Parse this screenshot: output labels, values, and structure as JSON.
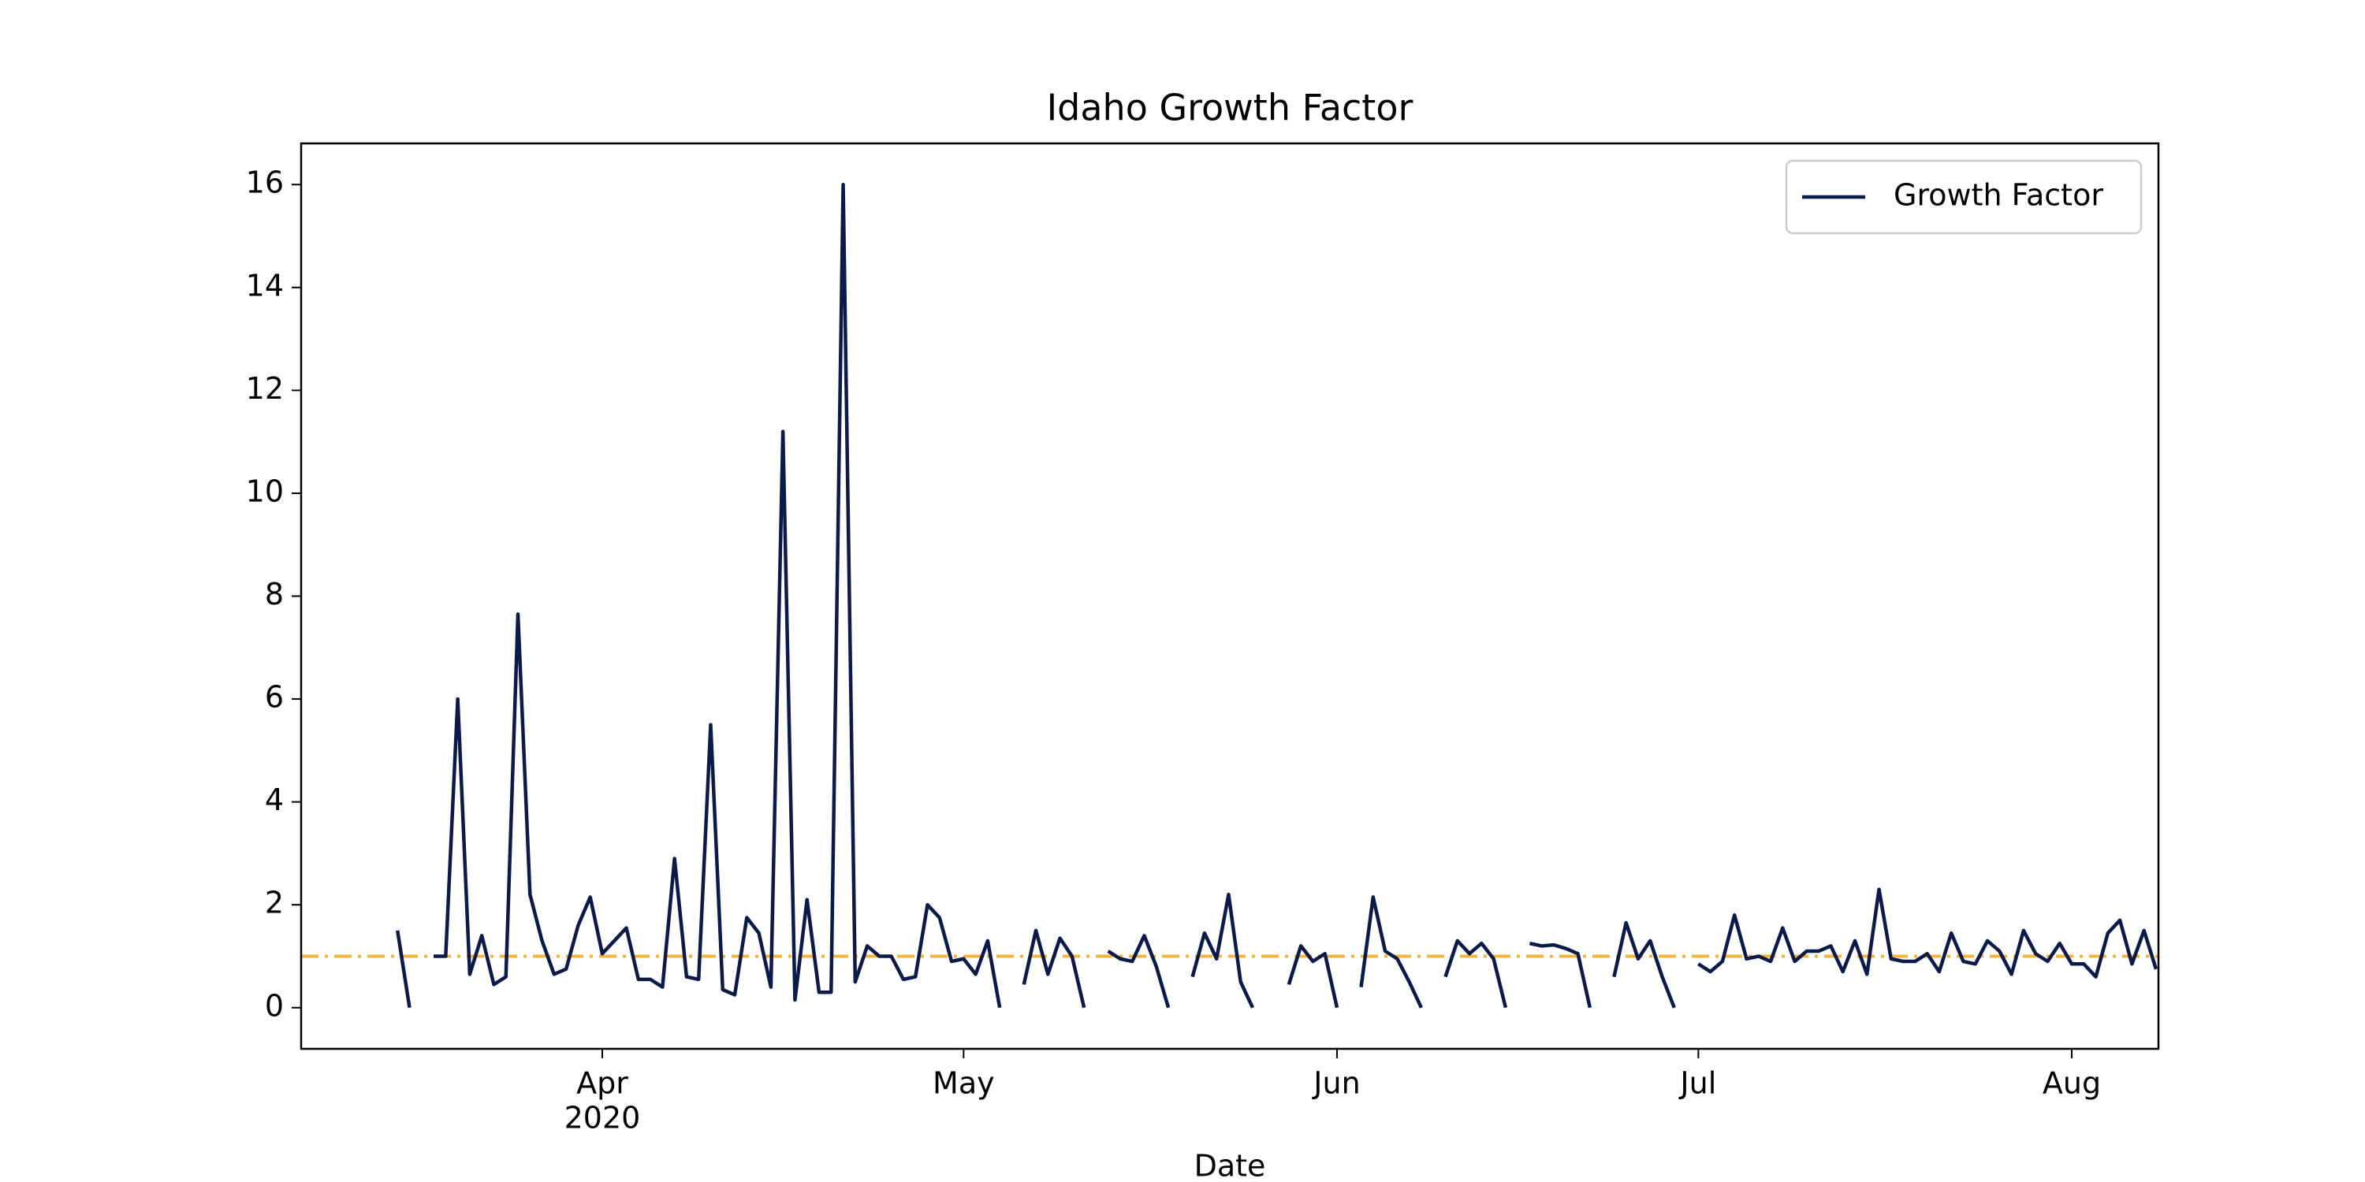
{
  "chart_data": {
    "type": "line",
    "title": "Idaho Growth Factor",
    "xlabel": "Date",
    "x": [
      75,
      76,
      77,
      78,
      79,
      80,
      81,
      82,
      83,
      84,
      85,
      86,
      87,
      88,
      89,
      90,
      91,
      92,
      93,
      94,
      95,
      96,
      97,
      98,
      99,
      100,
      101,
      102,
      103,
      104,
      105,
      106,
      107,
      108,
      109,
      110,
      111,
      112,
      113,
      114,
      115,
      116,
      117,
      118,
      119,
      120,
      121,
      122,
      123,
      124,
      125,
      126,
      127,
      128,
      129,
      130,
      131,
      132,
      133,
      134,
      135,
      136,
      137,
      138,
      139,
      140,
      141,
      142,
      143,
      144,
      145,
      146,
      147,
      148,
      149,
      150,
      151,
      152,
      153,
      154,
      155,
      156,
      157,
      158,
      159,
      160,
      161,
      162,
      163,
      164,
      165,
      166,
      167,
      168,
      169,
      170,
      171,
      172,
      173,
      174,
      175,
      176,
      177,
      178,
      179,
      180,
      181,
      182,
      183,
      184,
      185,
      186,
      187,
      188,
      189,
      190,
      191,
      192,
      193,
      194,
      195,
      196,
      197,
      198,
      199,
      200,
      201,
      202,
      203,
      204,
      205,
      206,
      207,
      208,
      209,
      210,
      211,
      212,
      213,
      214,
      215,
      216,
      217,
      218,
      219,
      220,
      221
    ],
    "series": [
      {
        "name": "Growth Factor",
        "color": "#0b1a48",
        "values": [
          1.5,
          0,
          null,
          1.0,
          1.0,
          6.0,
          0.65,
          1.4,
          0.45,
          0.6,
          7.65,
          2.2,
          1.3,
          0.65,
          0.75,
          1.6,
          2.15,
          1.05,
          1.3,
          1.55,
          0.55,
          0.55,
          0.4,
          2.9,
          0.6,
          0.55,
          5.5,
          0.35,
          0.25,
          1.75,
          1.45,
          0.4,
          11.2,
          0.15,
          2.1,
          0.3,
          0.3,
          16.0,
          0.5,
          1.2,
          1.0,
          1.0,
          0.55,
          0.6,
          2.0,
          1.75,
          0.9,
          0.95,
          0.65,
          1.3,
          0,
          null,
          0.45,
          1.5,
          0.65,
          1.35,
          1.0,
          0,
          null,
          1.1,
          0.95,
          0.9,
          1.4,
          0.8,
          0,
          null,
          0.6,
          1.45,
          0.95,
          2.2,
          0.5,
          0,
          null,
          null,
          0.45,
          1.2,
          0.9,
          1.05,
          0,
          null,
          0.4,
          2.15,
          1.1,
          0.95,
          0.5,
          0,
          null,
          0.6,
          1.3,
          1.05,
          1.25,
          0.95,
          0,
          null,
          1.25,
          1.2,
          1.22,
          1.15,
          1.05,
          0,
          null,
          0.6,
          1.65,
          0.95,
          1.3,
          0.6,
          0,
          null,
          0.85,
          0.7,
          0.9,
          1.8,
          0.95,
          1.0,
          0.9,
          1.55,
          0.9,
          1.1,
          1.1,
          1.2,
          0.7,
          1.3,
          0.65,
          2.3,
          0.95,
          0.9,
          0.9,
          1.05,
          0.7,
          1.45,
          0.9,
          0.85,
          1.3,
          1.1,
          0.65,
          1.5,
          1.05,
          0.9,
          1.25,
          0.85,
          0.85,
          0.6,
          1.45,
          1.7,
          0.85,
          1.5,
          0.75
        ]
      }
    ],
    "reference_line": {
      "value": 1,
      "color": "#f4b43c",
      "style": "dashdot"
    },
    "xlim": [
      67,
      221.2
    ],
    "xticks": [
      {
        "value": 92,
        "label": "Apr"
      },
      {
        "value": 122,
        "label": "May"
      },
      {
        "value": 153,
        "label": "Jun"
      },
      {
        "value": 183,
        "label": "Jul"
      },
      {
        "value": 214,
        "label": "Aug"
      }
    ],
    "xtick_sublabel": "2020",
    "ylim": [
      -0.8,
      16.8
    ],
    "yticks": [
      0,
      2,
      4,
      6,
      8,
      10,
      12,
      14,
      16
    ],
    "grid": false,
    "legend": "upper right"
  }
}
